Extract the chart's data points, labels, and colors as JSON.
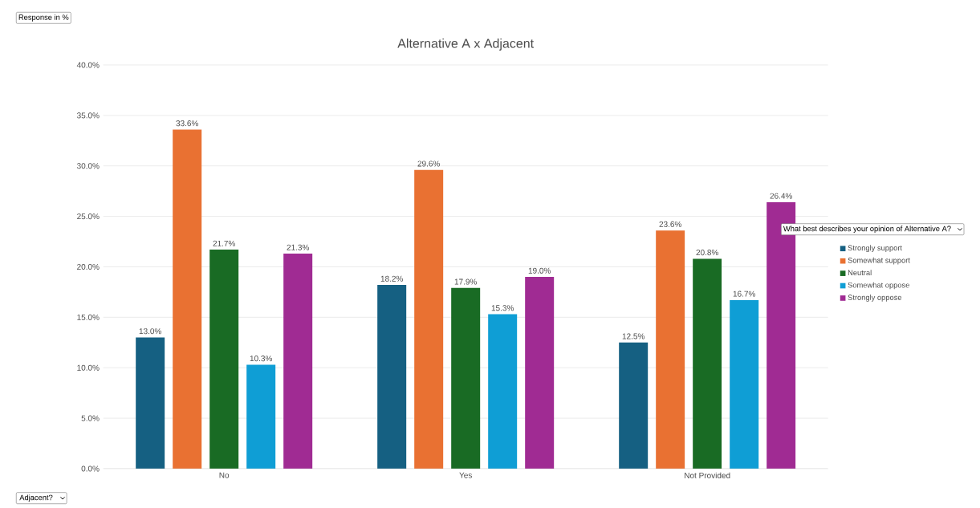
{
  "chart_data": {
    "type": "bar",
    "title": "Alternative A x Adjacent",
    "annotations": [
      "Response in %"
    ],
    "xlabel": "Adjacent?",
    "legend_title": "What best describes your opinion of Alternative A?",
    "categories": [
      "No",
      "Yes",
      "Not Provided"
    ],
    "series": [
      {
        "name": "Strongly support",
        "color": "#156082",
        "values": [
          13.0,
          18.2,
          12.5
        ],
        "value_labels": [
          "13.0%",
          "18.2%",
          "12.5%"
        ]
      },
      {
        "name": "Somewhat support",
        "color": "#e97132",
        "values": [
          33.6,
          29.6,
          23.6
        ],
        "value_labels": [
          "33.6%",
          "29.6%",
          "23.6%"
        ]
      },
      {
        "name": "Neutral",
        "color": "#196b24",
        "values": [
          21.7,
          17.9,
          20.8
        ],
        "value_labels": [
          "21.7%",
          "17.9%",
          "20.8%"
        ]
      },
      {
        "name": "Somewhat oppose",
        "color": "#0f9ed5",
        "values": [
          10.3,
          15.3,
          16.7
        ],
        "value_labels": [
          "10.3%",
          "15.3%",
          "16.7%"
        ]
      },
      {
        "name": "Strongly oppose",
        "color": "#a02b93",
        "values": [
          21.3,
          19.0,
          26.4
        ],
        "value_labels": [
          "21.3%",
          "19.0%",
          "26.4%"
        ]
      }
    ],
    "ylim": [
      0,
      40
    ],
    "yticks": [
      {
        "value": 0,
        "label": "0.0%"
      },
      {
        "value": 5,
        "label": "5.0%"
      },
      {
        "value": 10,
        "label": "10.0%"
      },
      {
        "value": 15,
        "label": "15.0%"
      },
      {
        "value": 20,
        "label": "20.0%"
      },
      {
        "value": 25,
        "label": "25.0%"
      },
      {
        "value": 30,
        "label": "30.0%"
      },
      {
        "value": 35,
        "label": "35.0%"
      },
      {
        "value": 40,
        "label": "40.0%"
      }
    ],
    "grid": "y",
    "legend": "right"
  }
}
